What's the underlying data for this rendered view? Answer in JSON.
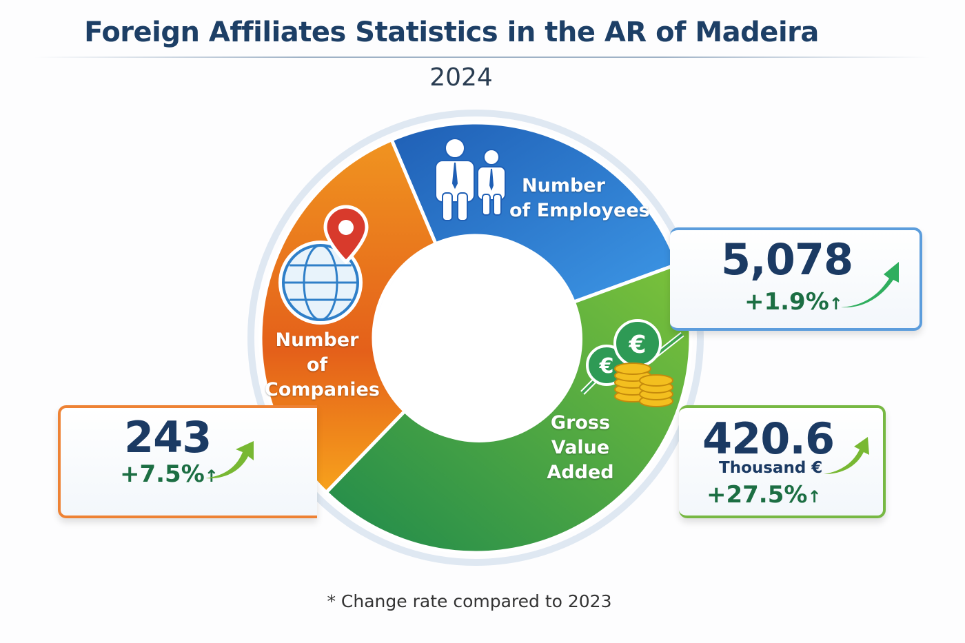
{
  "header": {
    "title": "Foreign Affiliates Statistics in the AR of Madeira",
    "year": "2024"
  },
  "segments": [
    {
      "label_line1": "Number",
      "label_line2": "of Employees",
      "color": "#2a78cc",
      "icon": "people-icon"
    },
    {
      "label_line1": "Gross",
      "label_line2": "Value Added",
      "color": "#4a9e33",
      "icon": "euro-coins-growth-icon"
    },
    {
      "label_line1": "Number of",
      "label_line2": "Companies",
      "color": "#ec7a1e",
      "icon": "globe-location-pin-icon"
    }
  ],
  "stats": {
    "employees": {
      "value": "5,078",
      "change": "+1.9%",
      "arrow": "↑",
      "accent": "#4a90d9"
    },
    "gva": {
      "value": "420.6",
      "unit": "Thousand €",
      "change": "+27.5%",
      "arrow": "↑",
      "accent": "#6ab33e"
    },
    "companies": {
      "value": "243",
      "change": "+7.5%",
      "arrow": "↑",
      "accent": "#ef7f2a"
    }
  },
  "footnote": "* Change rate compared to 2023"
}
